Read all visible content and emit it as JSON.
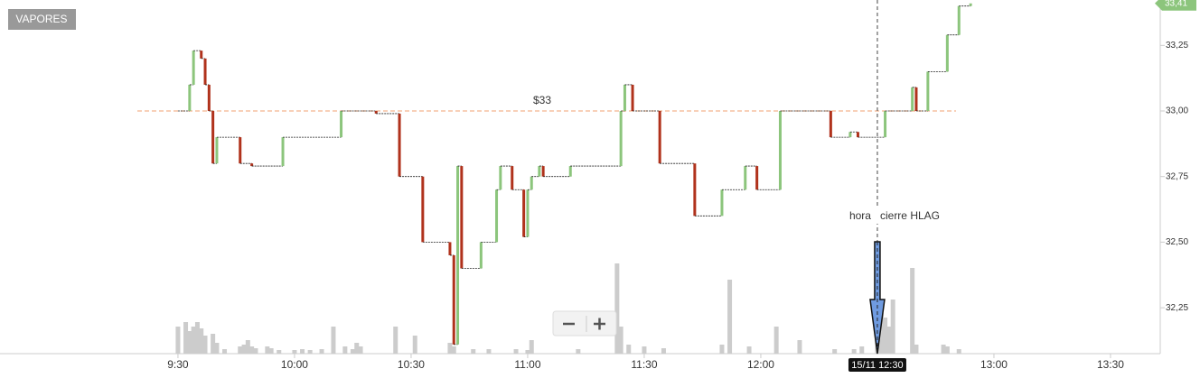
{
  "chart_data": {
    "type": "step",
    "button": "VAPORES",
    "x": [
      570,
      573,
      574,
      576,
      577,
      578,
      579,
      580,
      586,
      589,
      597,
      612,
      621,
      627,
      633,
      640,
      641,
      642,
      643,
      648,
      652,
      653,
      656,
      659,
      660,
      661,
      663,
      664,
      671,
      684,
      685,
      687,
      694,
      703,
      710,
      716,
      719,
      725,
      738,
      743,
      745,
      752,
      759,
      760,
      763,
      768,
      771,
      774
    ],
    "values": [
      33.0,
      33.1,
      33.23,
      33.2,
      33.1,
      33.0,
      32.8,
      32.9,
      32.8,
      32.79,
      32.9,
      33.0,
      32.99,
      32.75,
      32.5,
      32.45,
      32.11,
      32.79,
      32.4,
      32.5,
      32.7,
      32.79,
      32.7,
      32.52,
      32.7,
      32.75,
      32.79,
      32.75,
      32.79,
      33.0,
      33.1,
      33.0,
      32.8,
      32.6,
      32.7,
      32.79,
      32.7,
      33.0,
      32.9,
      32.92,
      32.9,
      33.0,
      33.09,
      33.0,
      33.15,
      33.29,
      33.4,
      33.41
    ],
    "up_color": "#8cc57c",
    "down_color": "#b0321c",
    "volume": {
      "x": [
        570,
        572,
        573,
        574,
        575,
        576,
        577,
        579,
        580,
        582,
        586,
        587,
        588,
        589,
        590,
        593,
        594,
        596,
        600,
        602,
        604,
        607,
        610,
        613,
        615,
        616,
        617,
        626,
        631,
        640,
        641,
        646,
        650,
        657,
        660,
        661,
        673,
        683,
        684,
        686,
        690,
        695,
        710,
        712,
        717,
        724,
        730,
        739,
        744,
        746,
        750,
        751,
        752,
        753,
        754,
        759,
        760,
        767,
        768,
        771
      ],
      "values": [
        30,
        35,
        25,
        30,
        35,
        28,
        20,
        22,
        12,
        5,
        8,
        10,
        15,
        8,
        6,
        8,
        6,
        4,
        4,
        5,
        4,
        5,
        30,
        8,
        5,
        12,
        8,
        30,
        20,
        12,
        8,
        5,
        5,
        5,
        4,
        15,
        5,
        100,
        30,
        10,
        8,
        6,
        10,
        82,
        8,
        30,
        15,
        5,
        5,
        8,
        35,
        45,
        40,
        30,
        60,
        95,
        10,
        10,
        8,
        5
      ],
      "color": "#cccccc",
      "vlim": [
        0,
        100
      ]
    },
    "xlim": [
      524.2,
      822.8
    ],
    "xticks": [
      {
        "value": 570,
        "label": "9:30"
      },
      {
        "value": 600,
        "label": "10:00"
      },
      {
        "value": 630,
        "label": "10:30"
      },
      {
        "value": 660,
        "label": "11:00"
      },
      {
        "value": 690,
        "label": "11:30"
      },
      {
        "value": 720,
        "label": "12:00"
      },
      {
        "value": 780,
        "label": "13:00"
      },
      {
        "value": 810,
        "label": "13:30"
      }
    ],
    "ylim": [
      32.075,
      33.423
    ],
    "yticks": [
      {
        "value": 32.25,
        "label": "32,25"
      },
      {
        "value": 32.5,
        "label": "32,50"
      },
      {
        "value": 32.75,
        "label": "32,75"
      },
      {
        "value": 33,
        "label": "33,00"
      },
      {
        "value": 33.25,
        "label": "33,25"
      }
    ],
    "ref_line": {
      "value": 33,
      "label": "$33",
      "color": "#f0a070"
    },
    "crosshair": {
      "value": 750,
      "label": "15/11 12:30"
    },
    "annotation": "hora   cierre HLAG",
    "last_price": {
      "value": 33.41,
      "label": "33,41"
    }
  }
}
